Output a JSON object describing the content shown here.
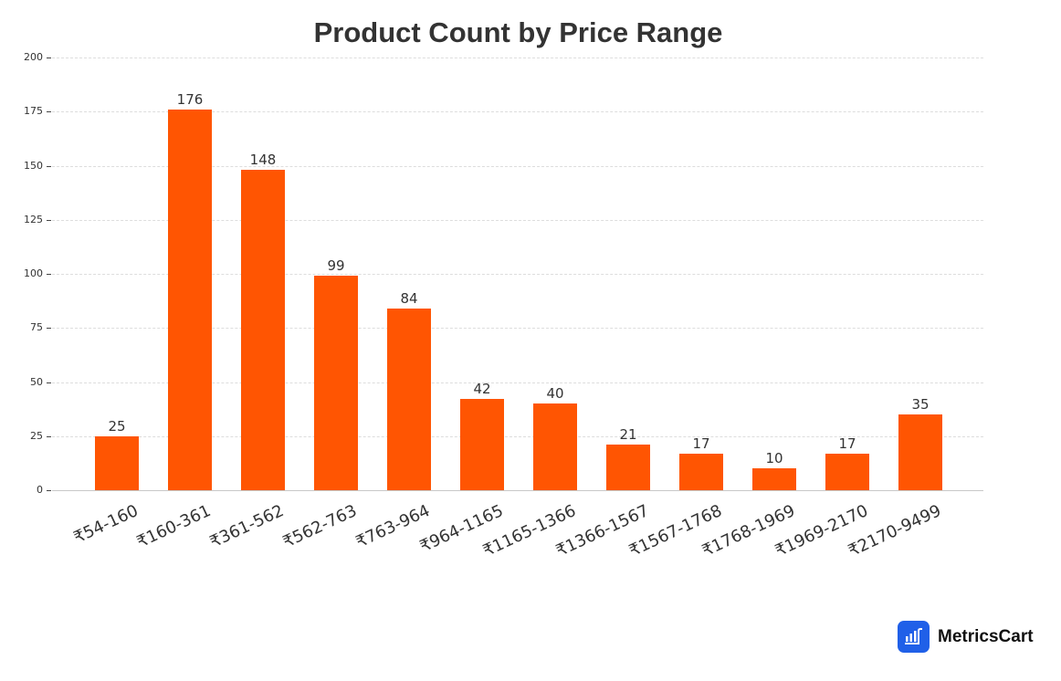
{
  "chart_data": {
    "type": "bar",
    "title": "Product Count by Price Range",
    "xlabel": "",
    "ylabel": "",
    "categories": [
      "₹54-160",
      "₹160-361",
      "₹361-562",
      "₹562-763",
      "₹763-964",
      "₹964-1165",
      "₹1165-1366",
      "₹1366-1567",
      "₹1567-1768",
      "₹1768-1969",
      "₹1969-2170",
      "₹2170-9499"
    ],
    "values": [
      25,
      176,
      148,
      99,
      84,
      42,
      40,
      21,
      17,
      10,
      17,
      35
    ],
    "ylim": [
      0,
      200
    ],
    "yticks": [
      0,
      25,
      50,
      75,
      100,
      125,
      150,
      175,
      200
    ],
    "grid": true,
    "legend": null,
    "bar_color": "#ff5502",
    "data_labels": true
  },
  "header": {
    "title": "Product Count by Price Range"
  },
  "axis": {
    "y_ticks": [
      "0",
      "25",
      "50",
      "75",
      "100",
      "125",
      "150",
      "175",
      "200"
    ]
  },
  "bars": [
    {
      "label": "₹54-160",
      "value": "25"
    },
    {
      "label": "₹160-361",
      "value": "176"
    },
    {
      "label": "₹361-562",
      "value": "148"
    },
    {
      "label": "₹562-763",
      "value": "99"
    },
    {
      "label": "₹763-964",
      "value": "84"
    },
    {
      "label": "₹964-1165",
      "value": "42"
    },
    {
      "label": "₹1165-1366",
      "value": "40"
    },
    {
      "label": "₹1366-1567",
      "value": "21"
    },
    {
      "label": "₹1567-1768",
      "value": "17"
    },
    {
      "label": "₹1768-1969",
      "value": "10"
    },
    {
      "label": "₹1969-2170",
      "value": "17"
    },
    {
      "label": "₹2170-9499",
      "value": "35"
    }
  ],
  "brand": {
    "name": "MetricsCart",
    "icon": "bar-chart-cart-icon",
    "icon_color": "#2060e8"
  }
}
